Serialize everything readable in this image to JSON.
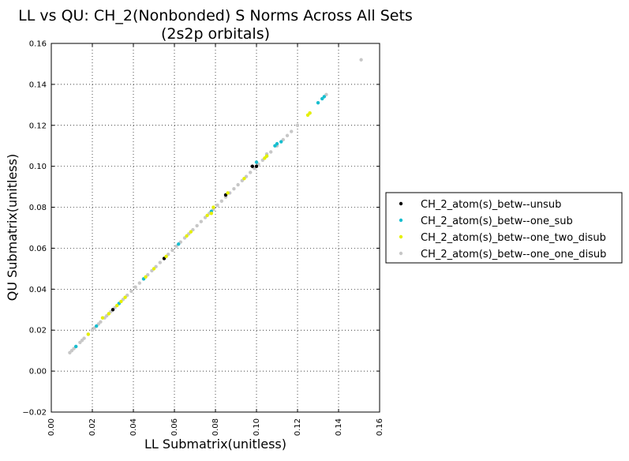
{
  "chart_data": {
    "type": "scatter",
    "title": "LL vs QU: CH_2(Nonbonded) S Norms Across All Sets",
    "subtitle": "(2s2p orbitals)",
    "xlabel": "LL Submatrix(unitless)",
    "ylabel": "QU Submatrix(unitless)",
    "xlim": [
      0.0,
      0.16
    ],
    "ylim": [
      -0.02,
      0.16
    ],
    "xticks": [
      "0.00",
      "0.02",
      "0.04",
      "0.06",
      "0.08",
      "0.10",
      "0.12",
      "0.14",
      "0.16"
    ],
    "yticks": [
      "−0.02",
      "0.00",
      "0.02",
      "0.04",
      "0.06",
      "0.08",
      "0.10",
      "0.12",
      "0.14",
      "0.16"
    ],
    "grid": true,
    "legend_position": "outside-right",
    "series": [
      {
        "name": "CH_2_atom(s)_betw--unsub",
        "color": "#000000",
        "points": [
          [
            0.03,
            0.03
          ],
          [
            0.055,
            0.055
          ],
          [
            0.085,
            0.086
          ],
          [
            0.098,
            0.1
          ],
          [
            0.1,
            0.1
          ]
        ]
      },
      {
        "name": "CH_2_atom(s)_betw--one_sub",
        "color": "#17becf",
        "points": [
          [
            0.012,
            0.012
          ],
          [
            0.022,
            0.022
          ],
          [
            0.033,
            0.033
          ],
          [
            0.045,
            0.045
          ],
          [
            0.062,
            0.062
          ],
          [
            0.078,
            0.078
          ],
          [
            0.1,
            0.102
          ],
          [
            0.105,
            0.105
          ],
          [
            0.109,
            0.11
          ],
          [
            0.11,
            0.111
          ],
          [
            0.112,
            0.112
          ],
          [
            0.13,
            0.131
          ],
          [
            0.132,
            0.133
          ],
          [
            0.133,
            0.134
          ]
        ]
      },
      {
        "name": "CH_2_atom(s)_betw--one_two_disub",
        "color": "#e5f000",
        "points": [
          [
            0.018,
            0.018
          ],
          [
            0.025,
            0.026
          ],
          [
            0.028,
            0.028
          ],
          [
            0.032,
            0.032
          ],
          [
            0.034,
            0.034
          ],
          [
            0.036,
            0.036
          ],
          [
            0.046,
            0.046
          ],
          [
            0.05,
            0.05
          ],
          [
            0.056,
            0.056
          ],
          [
            0.066,
            0.066
          ],
          [
            0.068,
            0.068
          ],
          [
            0.076,
            0.076
          ],
          [
            0.078,
            0.077
          ],
          [
            0.079,
            0.08
          ],
          [
            0.086,
            0.087
          ],
          [
            0.094,
            0.094
          ],
          [
            0.104,
            0.104
          ],
          [
            0.105,
            0.105
          ],
          [
            0.125,
            0.125
          ],
          [
            0.126,
            0.126
          ]
        ]
      },
      {
        "name": "CH_2_atom(s)_betw--one_one_disub",
        "color": "#c7c7c7",
        "points": [
          [
            0.009,
            0.009
          ],
          [
            0.01,
            0.01
          ],
          [
            0.011,
            0.011
          ],
          [
            0.012,
            0.012
          ],
          [
            0.014,
            0.014
          ],
          [
            0.015,
            0.015
          ],
          [
            0.016,
            0.016
          ],
          [
            0.018,
            0.018
          ],
          [
            0.02,
            0.02
          ],
          [
            0.021,
            0.021
          ],
          [
            0.023,
            0.023
          ],
          [
            0.024,
            0.024
          ],
          [
            0.026,
            0.026
          ],
          [
            0.027,
            0.027
          ],
          [
            0.029,
            0.029
          ],
          [
            0.031,
            0.031
          ],
          [
            0.033,
            0.033
          ],
          [
            0.035,
            0.035
          ],
          [
            0.037,
            0.037
          ],
          [
            0.039,
            0.039
          ],
          [
            0.041,
            0.041
          ],
          [
            0.043,
            0.043
          ],
          [
            0.045,
            0.045
          ],
          [
            0.047,
            0.047
          ],
          [
            0.049,
            0.049
          ],
          [
            0.051,
            0.051
          ],
          [
            0.053,
            0.053
          ],
          [
            0.055,
            0.055
          ],
          [
            0.057,
            0.057
          ],
          [
            0.059,
            0.059
          ],
          [
            0.061,
            0.061
          ],
          [
            0.063,
            0.063
          ],
          [
            0.065,
            0.065
          ],
          [
            0.067,
            0.067
          ],
          [
            0.069,
            0.069
          ],
          [
            0.071,
            0.071
          ],
          [
            0.073,
            0.073
          ],
          [
            0.075,
            0.075
          ],
          [
            0.077,
            0.077
          ],
          [
            0.079,
            0.079
          ],
          [
            0.081,
            0.081
          ],
          [
            0.083,
            0.083
          ],
          [
            0.085,
            0.085
          ],
          [
            0.087,
            0.087
          ],
          [
            0.089,
            0.089
          ],
          [
            0.091,
            0.091
          ],
          [
            0.093,
            0.093
          ],
          [
            0.095,
            0.095
          ],
          [
            0.097,
            0.097
          ],
          [
            0.099,
            0.099
          ],
          [
            0.101,
            0.101
          ],
          [
            0.103,
            0.103
          ],
          [
            0.105,
            0.106
          ],
          [
            0.107,
            0.107
          ],
          [
            0.11,
            0.11
          ],
          [
            0.113,
            0.113
          ],
          [
            0.115,
            0.115
          ],
          [
            0.117,
            0.117
          ],
          [
            0.12,
            0.12
          ],
          [
            0.126,
            0.126
          ],
          [
            0.134,
            0.135
          ],
          [
            0.151,
            0.152
          ]
        ]
      }
    ]
  }
}
